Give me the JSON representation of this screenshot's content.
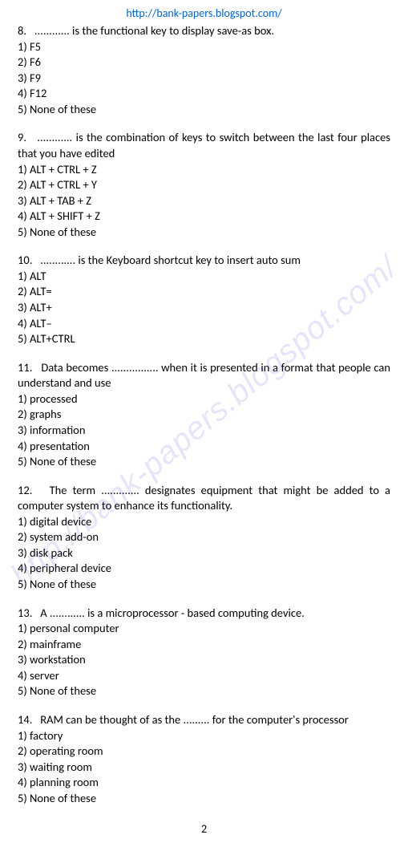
{
  "header": {
    "url": "http://bank-papers.blogspot.com/"
  },
  "watermark": {
    "text": "http://bank-papers.blogspot.com/"
  },
  "page_number": "2",
  "questions": [
    {
      "num": "8.",
      "text": "............ is the functional key to display save-as box.",
      "options": [
        "1) F5",
        "2) F6",
        "3) F9",
        "4) F12",
        "5) None of these"
      ]
    },
    {
      "num": "9.",
      "text": "............ is the combination of keys to switch between the last four places that you have edited",
      "options": [
        "1) ALT + CTRL + Z",
        "2) ALT + CTRL + Y",
        "3) ALT + TAB + Z",
        "4) ALT + SHIFT + Z",
        "5) None of these"
      ]
    },
    {
      "num": "10.",
      "text": "............ is the Keyboard shortcut key to insert auto sum",
      "options": [
        "1) ALT",
        "2) ALT=",
        "3) ALT+",
        "4) ALT–",
        "5) ALT+CTRL"
      ]
    },
    {
      "num": "11.",
      "text": "Data becomes ................ when it is presented in a format that people can understand and use",
      "options": [
        "1) processed",
        "2) graphs",
        "3) information",
        "4) presentation",
        "5) None of these"
      ]
    },
    {
      "num": "12.",
      "text": "The term ............. designates equipment that might be added to a computer system to enhance its functionality.",
      "options": [
        "1) digital device",
        "2) system add-on",
        "3) disk pack",
        "4) peripheral device",
        "5) None of these"
      ]
    },
    {
      "num": "13.",
      "text": "A ............ is a microprocessor - based computing device.",
      "options": [
        "1) personal computer",
        "2) mainframe",
        "3) workstation",
        "4) server",
        "5) None of these"
      ]
    },
    {
      "num": "14.",
      "text": "RAM can be thought of as the ......... for the computer's processor",
      "options": [
        "1) factory",
        "2) operating room",
        "3) waiting room",
        "4) planning room",
        "5) None of these"
      ]
    }
  ]
}
